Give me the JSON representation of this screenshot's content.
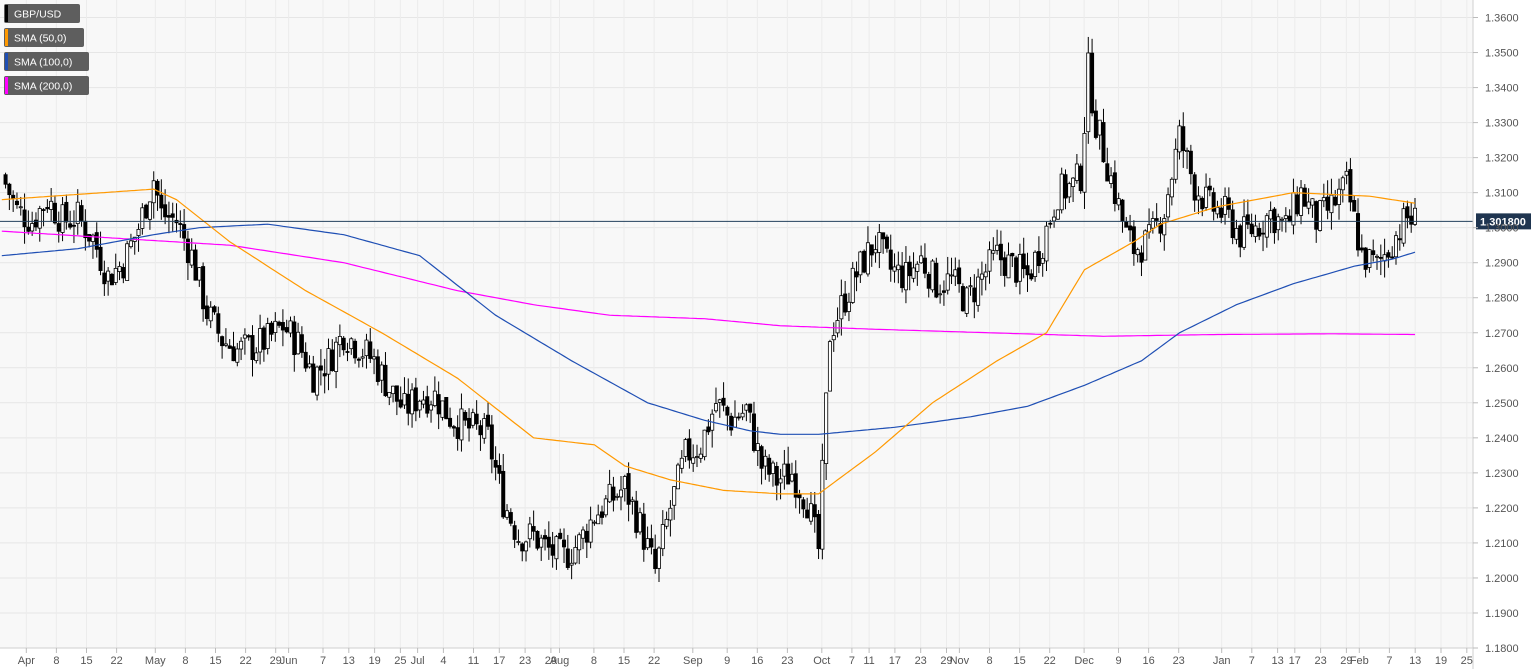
{
  "chart_data": {
    "type": "candlestick",
    "symbol": "GBP/USD",
    "current_price_label": "1.301800",
    "current_price": 1.3018,
    "y_axis": {
      "min": 1.18,
      "max": 1.365,
      "ticks": [
        "1.1800",
        "1.1900",
        "1.2000",
        "1.2100",
        "1.2200",
        "1.2300",
        "1.2400",
        "1.2500",
        "1.2600",
        "1.2700",
        "1.2800",
        "1.2900",
        "1.3000",
        "1.3100",
        "1.3200",
        "1.3300",
        "1.3400",
        "1.3500",
        "1.3600"
      ]
    },
    "x_axis": {
      "labels": [
        "Apr",
        "8",
        "15",
        "22",
        "May",
        "8",
        "15",
        "22",
        "29",
        "Jun",
        "7",
        "13",
        "19",
        "25",
        "Jul",
        "4",
        "11",
        "17",
        "23",
        "29",
        "Aug",
        "8",
        "15",
        "22",
        "Sep",
        "9",
        "16",
        "23",
        "Oct",
        "7",
        "11",
        "17",
        "23",
        "29",
        "Nov",
        "8",
        "15",
        "22",
        "Dec",
        "9",
        "16",
        "23",
        "Jan",
        "7",
        "13",
        "17",
        "23",
        "29",
        "Feb",
        "7",
        "13",
        "19",
        "25"
      ],
      "label_day_index": [
        1,
        8,
        15,
        22,
        31,
        38,
        45,
        52,
        59,
        62,
        70,
        76,
        82,
        88,
        92,
        98,
        105,
        111,
        117,
        123,
        125,
        133,
        140,
        147,
        156,
        164,
        171,
        178,
        186,
        193,
        197,
        203,
        209,
        215,
        218,
        225,
        232,
        239,
        247,
        255,
        262,
        269,
        279,
        286,
        292,
        296,
        302,
        308,
        311,
        318,
        324,
        330,
        336
      ]
    },
    "days": 345,
    "legend": [
      {
        "label": "GBP/USD",
        "color": "#000000"
      },
      {
        "label": "SMA (50,0)",
        "color": "#ff9900"
      },
      {
        "label": "SMA (100,0)",
        "color": "#1f4fb4"
      },
      {
        "label": "SMA (200,0)",
        "color": "#ff00ff"
      }
    ],
    "anchors": [
      [
        0,
        1.315
      ],
      [
        4,
        1.305
      ],
      [
        8,
        1.302
      ],
      [
        12,
        1.308
      ],
      [
        16,
        1.302
      ],
      [
        20,
        1.303
      ],
      [
        24,
        1.297
      ],
      [
        28,
        1.286
      ],
      [
        32,
        1.29
      ],
      [
        36,
        1.3
      ],
      [
        40,
        1.314
      ],
      [
        42,
        1.304
      ],
      [
        46,
        1.302
      ],
      [
        50,
        1.292
      ],
      [
        54,
        1.276
      ],
      [
        58,
        1.268
      ],
      [
        62,
        1.265
      ],
      [
        66,
        1.266
      ],
      [
        70,
        1.268
      ],
      [
        74,
        1.272
      ],
      [
        78,
        1.267
      ],
      [
        82,
        1.258
      ],
      [
        86,
        1.262
      ],
      [
        90,
        1.27
      ],
      [
        94,
        1.266
      ],
      [
        98,
        1.262
      ],
      [
        102,
        1.254
      ],
      [
        106,
        1.248
      ],
      [
        110,
        1.252
      ],
      [
        114,
        1.252
      ],
      [
        118,
        1.246
      ],
      [
        122,
        1.243
      ],
      [
        126,
        1.242
      ],
      [
        128,
        1.24
      ],
      [
        132,
        1.222
      ],
      [
        136,
        1.212
      ],
      [
        140,
        1.212
      ],
      [
        144,
        1.208
      ],
      [
        148,
        1.206
      ],
      [
        152,
        1.21
      ],
      [
        156,
        1.218
      ],
      [
        160,
        1.222
      ],
      [
        164,
        1.226
      ],
      [
        168,
        1.215
      ],
      [
        172,
        1.202
      ],
      [
        176,
        1.22
      ],
      [
        180,
        1.235
      ],
      [
        184,
        1.238
      ],
      [
        188,
        1.25
      ],
      [
        192,
        1.245
      ],
      [
        196,
        1.248
      ],
      [
        200,
        1.232
      ],
      [
        204,
        1.228
      ],
      [
        208,
        1.23
      ],
      [
        212,
        1.222
      ],
      [
        215,
        1.208
      ],
      [
        218,
        1.27
      ],
      [
        222,
        1.28
      ],
      [
        226,
        1.289
      ],
      [
        230,
        1.296
      ],
      [
        234,
        1.288
      ],
      [
        238,
        1.286
      ],
      [
        242,
        1.291
      ],
      [
        246,
        1.284
      ],
      [
        250,
        1.285
      ],
      [
        254,
        1.279
      ],
      [
        258,
        1.286
      ],
      [
        262,
        1.292
      ],
      [
        266,
        1.289
      ],
      [
        270,
        1.286
      ],
      [
        274,
        1.296
      ],
      [
        278,
        1.31
      ],
      [
        282,
        1.312
      ],
      [
        284,
        1.315
      ],
      [
        286,
        1.345
      ],
      [
        288,
        1.33
      ],
      [
        290,
        1.322
      ],
      [
        292,
        1.314
      ],
      [
        294,
        1.306
      ],
      [
        296,
        1.298
      ],
      [
        298,
        1.294
      ],
      [
        302,
        1.296
      ],
      [
        306,
        1.305
      ],
      [
        310,
        1.326
      ],
      [
        314,
        1.312
      ],
      [
        318,
        1.306
      ],
      [
        322,
        1.304
      ],
      [
        326,
        1.298
      ],
      [
        330,
        1.3
      ],
      [
        334,
        1.304
      ],
      [
        338,
        1.3
      ],
      [
        342,
        1.31
      ],
      [
        346,
        1.302
      ],
      [
        350,
        1.306
      ],
      [
        354,
        1.312
      ],
      [
        358,
        1.292
      ],
      [
        362,
        1.289
      ],
      [
        366,
        1.296
      ],
      [
        370,
        1.303
      ],
      [
        372,
        1.3018
      ]
    ],
    "sma50_anchors": [
      [
        0,
        1.308
      ],
      [
        40,
        1.311
      ],
      [
        46,
        1.308
      ],
      [
        60,
        1.296
      ],
      [
        80,
        1.282
      ],
      [
        100,
        1.27
      ],
      [
        120,
        1.257
      ],
      [
        140,
        1.24
      ],
      [
        156,
        1.238
      ],
      [
        164,
        1.232
      ],
      [
        176,
        1.228
      ],
      [
        190,
        1.225
      ],
      [
        205,
        1.224
      ],
      [
        215,
        1.224
      ],
      [
        230,
        1.236
      ],
      [
        245,
        1.25
      ],
      [
        262,
        1.262
      ],
      [
        275,
        1.27
      ],
      [
        285,
        1.288
      ],
      [
        298,
        1.296
      ],
      [
        305,
        1.301
      ],
      [
        320,
        1.306
      ],
      [
        340,
        1.31
      ],
      [
        360,
        1.309
      ],
      [
        372,
        1.307
      ]
    ],
    "sma100_anchors": [
      [
        0,
        1.292
      ],
      [
        20,
        1.294
      ],
      [
        40,
        1.298
      ],
      [
        52,
        1.3
      ],
      [
        70,
        1.301
      ],
      [
        90,
        1.298
      ],
      [
        110,
        1.292
      ],
      [
        130,
        1.275
      ],
      [
        150,
        1.262
      ],
      [
        170,
        1.25
      ],
      [
        185,
        1.245
      ],
      [
        197,
        1.242
      ],
      [
        205,
        1.241
      ],
      [
        215,
        1.241
      ],
      [
        235,
        1.243
      ],
      [
        255,
        1.246
      ],
      [
        270,
        1.249
      ],
      [
        285,
        1.255
      ],
      [
        300,
        1.262
      ],
      [
        310,
        1.27
      ],
      [
        325,
        1.278
      ],
      [
        340,
        1.284
      ],
      [
        356,
        1.289
      ],
      [
        366,
        1.291
      ],
      [
        372,
        1.293
      ]
    ],
    "sma200_anchors": [
      [
        0,
        1.299
      ],
      [
        30,
        1.297
      ],
      [
        60,
        1.295
      ],
      [
        90,
        1.29
      ],
      [
        120,
        1.282
      ],
      [
        140,
        1.278
      ],
      [
        160,
        1.275
      ],
      [
        185,
        1.274
      ],
      [
        205,
        1.272
      ],
      [
        230,
        1.271
      ],
      [
        260,
        1.27
      ],
      [
        290,
        1.269
      ],
      [
        320,
        1.2695
      ],
      [
        350,
        1.2697
      ],
      [
        372,
        1.2695
      ]
    ]
  }
}
